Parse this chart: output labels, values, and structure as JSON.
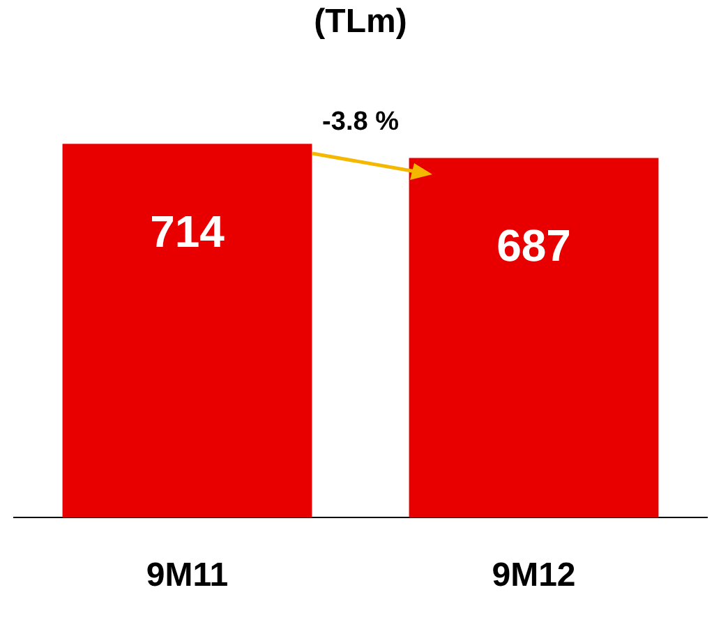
{
  "chart_data": {
    "type": "bar",
    "title": "(TLm)",
    "categories": [
      "9M11",
      "9M12"
    ],
    "values": [
      714,
      687
    ],
    "color": "#e80000",
    "data_labels": true,
    "annotations": [
      "-3.8 %"
    ],
    "grid": false,
    "legend": false
  }
}
